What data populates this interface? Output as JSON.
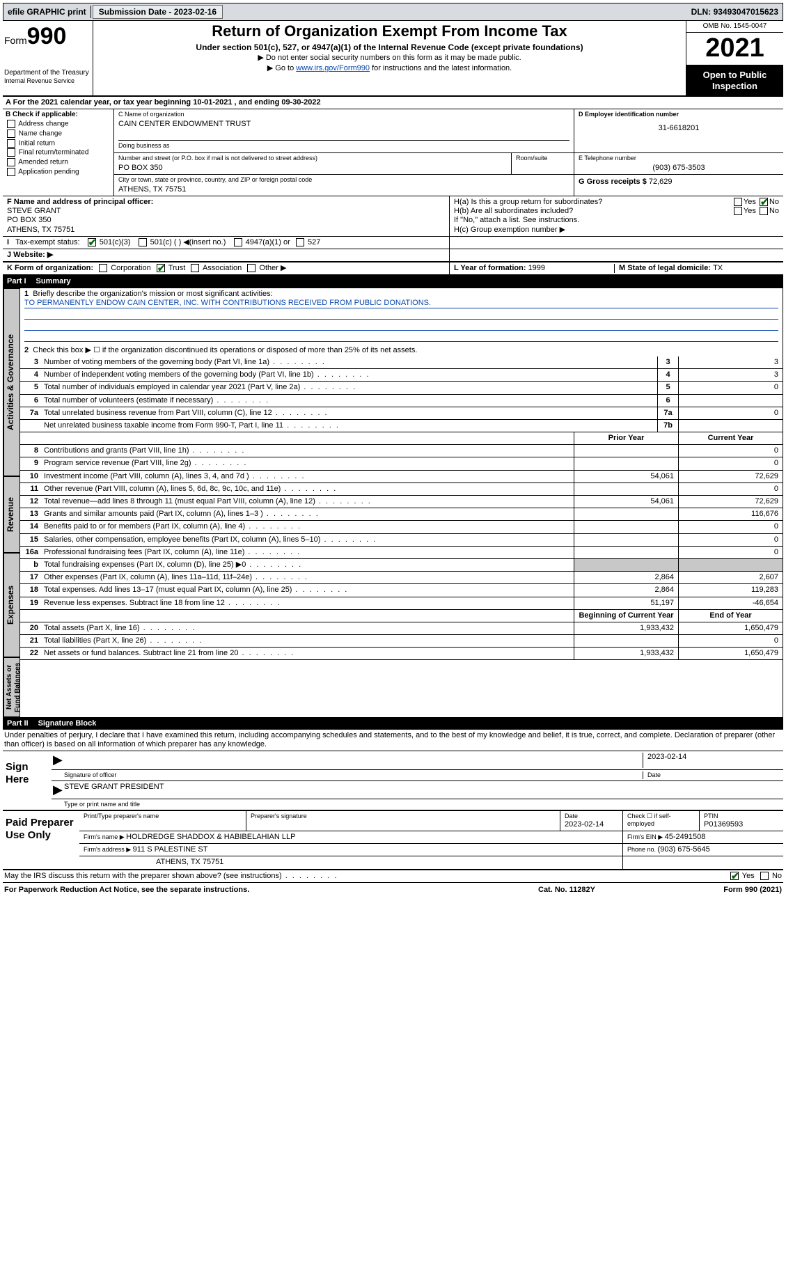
{
  "topbar": {
    "efile": "efile GRAPHIC print",
    "subdate_lbl": "Submission Date - ",
    "subdate": "2023-02-16",
    "dln_lbl": "DLN: ",
    "dln": "93493047015623"
  },
  "hdr": {
    "form_prefix": "Form",
    "form_num": "990",
    "dept": "Department of the Treasury",
    "irs": "Internal Revenue Service",
    "title": "Return of Organization Exempt From Income Tax",
    "sub": "Under section 501(c), 527, or 4947(a)(1) of the Internal Revenue Code (except private foundations)",
    "note1": "▶ Do not enter social security numbers on this form as it may be made public.",
    "note2_pre": "▶ Go to ",
    "note2_link": "www.irs.gov/Form990",
    "note2_post": " for instructions and the latest information.",
    "omb": "OMB No. 1545-0047",
    "year": "2021",
    "open": "Open to Public Inspection"
  },
  "rowA": {
    "txt_pre": "A For the 2021 calendar year, or tax year beginning ",
    "begin": "10-01-2021",
    "mid": " , and ending ",
    "end": "09-30-2022"
  },
  "B": {
    "hdr": "B Check if applicable:",
    "items": [
      "Address change",
      "Name change",
      "Initial return",
      "Final return/terminated",
      "Amended return",
      "Application pending"
    ]
  },
  "C": {
    "name_lbl": "C Name of organization",
    "name": "CAIN CENTER ENDOWMENT TRUST",
    "dba_lbl": "Doing business as",
    "dba": "",
    "street_lbl": "Number and street (or P.O. box if mail is not delivered to street address)",
    "street": "PO BOX 350",
    "room_lbl": "Room/suite",
    "city_lbl": "City or town, state or province, country, and ZIP or foreign postal code",
    "city": "ATHENS, TX  75751"
  },
  "D": {
    "lbl": "D Employer identification number",
    "val": "31-6618201"
  },
  "E": {
    "lbl": "E Telephone number",
    "val": "(903) 675-3503"
  },
  "G": {
    "lbl": "G Gross receipts $ ",
    "val": "72,629"
  },
  "F": {
    "lbl": "F  Name and address of principal officer:",
    "name": "STEVE GRANT",
    "street": "PO BOX 350",
    "city": "ATHENS, TX  75751"
  },
  "H": {
    "a": "H(a)  Is this a group return for subordinates?",
    "b": "H(b)  Are all subordinates included?",
    "note": "If \"No,\" attach a list. See instructions.",
    "c": "H(c)  Group exemption number ▶",
    "yes": "Yes",
    "no": "No"
  },
  "I": {
    "lbl": "Tax-exempt status:",
    "o1": "501(c)(3)",
    "o2": "501(c) (  ) ◀(insert no.)",
    "o3": "4947(a)(1) or",
    "o4": "527"
  },
  "J": {
    "lbl": "J    Website: ▶"
  },
  "K": {
    "lbl": "K Form of organization:",
    "opts": [
      "Corporation",
      "Trust",
      "Association",
      "Other ▶"
    ],
    "checked": 1
  },
  "L": {
    "lbl": "L Year of formation: ",
    "val": "1999"
  },
  "M": {
    "lbl": "M State of legal domicile: ",
    "val": "TX"
  },
  "part1": {
    "num": "Part I",
    "title": "Summary"
  },
  "tabs": [
    "Activities & Governance",
    "Revenue",
    "Expenses",
    "Net Assets or Fund Balances"
  ],
  "s1": {
    "num": "1",
    "txt": "Briefly describe the organization's mission or most significant activities:",
    "mission": "TO PERMANENTLY ENDOW CAIN CENTER, INC. WITH CONTRIBUTIONS RECEIVED FROM PUBLIC DONATIONS."
  },
  "s2": {
    "num": "2",
    "txt": "Check this box ▶ ☐  if the organization discontinued its operations or disposed of more than 25% of its net assets."
  },
  "lines_gov": [
    {
      "n": "3",
      "t": "Number of voting members of the governing body (Part VI, line 1a)",
      "b": "3",
      "v": "3"
    },
    {
      "n": "4",
      "t": "Number of independent voting members of the governing body (Part VI, line 1b)",
      "b": "4",
      "v": "3"
    },
    {
      "n": "5",
      "t": "Total number of individuals employed in calendar year 2021 (Part V, line 2a)",
      "b": "5",
      "v": "0"
    },
    {
      "n": "6",
      "t": "Total number of volunteers (estimate if necessary)",
      "b": "6",
      "v": ""
    },
    {
      "n": "7a",
      "t": "Total unrelated business revenue from Part VIII, column (C), line 12",
      "b": "7a",
      "v": "0"
    },
    {
      "n": "",
      "t": "Net unrelated business taxable income from Form 990-T, Part I, line 11",
      "b": "7b",
      "v": ""
    }
  ],
  "yrhdr": {
    "py": "Prior Year",
    "cy": "Current Year"
  },
  "lines_rev": [
    {
      "n": "8",
      "t": "Contributions and grants (Part VIII, line 1h)",
      "py": "",
      "cy": "0"
    },
    {
      "n": "9",
      "t": "Program service revenue (Part VIII, line 2g)",
      "py": "",
      "cy": "0"
    },
    {
      "n": "10",
      "t": "Investment income (Part VIII, column (A), lines 3, 4, and 7d )",
      "py": "54,061",
      "cy": "72,629"
    },
    {
      "n": "11",
      "t": "Other revenue (Part VIII, column (A), lines 5, 6d, 8c, 9c, 10c, and 11e)",
      "py": "",
      "cy": "0"
    },
    {
      "n": "12",
      "t": "Total revenue—add lines 8 through 11 (must equal Part VIII, column (A), line 12)",
      "py": "54,061",
      "cy": "72,629"
    }
  ],
  "lines_exp": [
    {
      "n": "13",
      "t": "Grants and similar amounts paid (Part IX, column (A), lines 1–3 )",
      "py": "",
      "cy": "116,676"
    },
    {
      "n": "14",
      "t": "Benefits paid to or for members (Part IX, column (A), line 4)",
      "py": "",
      "cy": "0"
    },
    {
      "n": "15",
      "t": "Salaries, other compensation, employee benefits (Part IX, column (A), lines 5–10)",
      "py": "",
      "cy": "0"
    },
    {
      "n": "16a",
      "t": "Professional fundraising fees (Part IX, column (A), line 11e)",
      "py": "",
      "cy": "0"
    },
    {
      "n": "b",
      "t": "Total fundraising expenses (Part IX, column (D), line 25) ▶0",
      "py": "SHADE",
      "cy": "SHADE"
    },
    {
      "n": "17",
      "t": "Other expenses (Part IX, column (A), lines 11a–11d, 11f–24e)",
      "py": "2,864",
      "cy": "2,607"
    },
    {
      "n": "18",
      "t": "Total expenses. Add lines 13–17 (must equal Part IX, column (A), line 25)",
      "py": "2,864",
      "cy": "119,283"
    },
    {
      "n": "19",
      "t": "Revenue less expenses. Subtract line 18 from line 12",
      "py": "51,197",
      "cy": "-46,654"
    }
  ],
  "yrhdr2": {
    "py": "Beginning of Current Year",
    "cy": "End of Year"
  },
  "lines_net": [
    {
      "n": "20",
      "t": "Total assets (Part X, line 16)",
      "py": "1,933,432",
      "cy": "1,650,479"
    },
    {
      "n": "21",
      "t": "Total liabilities (Part X, line 26)",
      "py": "",
      "cy": "0"
    },
    {
      "n": "22",
      "t": "Net assets or fund balances. Subtract line 21 from line 20",
      "py": "1,933,432",
      "cy": "1,650,479"
    }
  ],
  "part2": {
    "num": "Part II",
    "title": "Signature Block"
  },
  "jurat": "Under penalties of perjury, I declare that I have examined this return, including accompanying schedules and statements, and to the best of my knowledge and belief, it is true, correct, and complete. Declaration of preparer (other than officer) is based on all information of which preparer has any knowledge.",
  "sign": {
    "here": "Sign Here",
    "sig_lbl": "Signature of officer",
    "date_lbl": "Date",
    "date": "2023-02-14",
    "name": "STEVE GRANT PRESIDENT",
    "name_lbl": "Type or print name and title"
  },
  "prep": {
    "here": "Paid Preparer Use Only",
    "h1": "Print/Type preparer's name",
    "h2": "Preparer's signature",
    "h3": "Date",
    "h3v": "2023-02-14",
    "h4": "Check ☐ if self-employed",
    "h5": "PTIN",
    "h5v": "P01369593",
    "firm_lbl": "Firm's name   ▶ ",
    "firm": "HOLDREDGE SHADDOX & HABIBELAHIAN LLP",
    "ein_lbl": "Firm's EIN ▶ ",
    "ein": "45-2491508",
    "addr_lbl": "Firm's address ▶ ",
    "addr1": "911 S PALESTINE ST",
    "addr2": "ATHENS, TX  75751",
    "phone_lbl": "Phone no. ",
    "phone": "(903) 675-5645"
  },
  "discuss": {
    "txt": "May the IRS discuss this return with the preparer shown above? (see instructions)",
    "yes": "Yes",
    "no": "No"
  },
  "foot": {
    "l": "For Paperwork Reduction Act Notice, see the separate instructions.",
    "m": "Cat. No. 11282Y",
    "r": "Form 990 (2021)"
  }
}
